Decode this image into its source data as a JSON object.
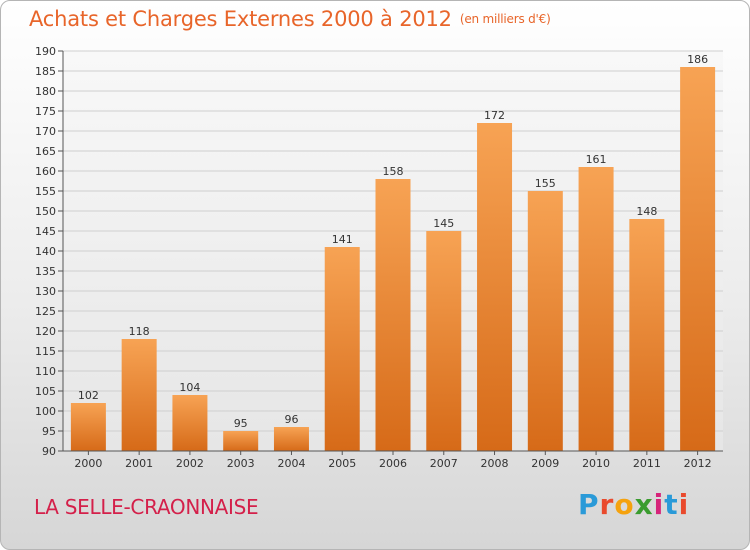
{
  "header": {
    "title": "Achats et Charges Externes 2000 à 2012",
    "unit": "(en milliers d'€)"
  },
  "footer": {
    "commune": "LA SELLE-CRAONNAISE",
    "logo_letters": [
      "P",
      "r",
      "o",
      "x",
      "i",
      "t",
      "i"
    ],
    "logo_colors": [
      "#2a9ad8",
      "#e94a2d",
      "#f5a20e",
      "#3a9c2f",
      "#d6247a",
      "#2a9ad8",
      "#e94a2d"
    ]
  },
  "chart_data": {
    "type": "bar",
    "categories": [
      "2000",
      "2001",
      "2002",
      "2003",
      "2004",
      "2005",
      "2006",
      "2007",
      "2008",
      "2009",
      "2010",
      "2011",
      "2012"
    ],
    "values": [
      102,
      118,
      104,
      95,
      96,
      141,
      158,
      145,
      172,
      155,
      161,
      148,
      186
    ],
    "ylim": [
      90,
      190
    ],
    "yticks": [
      90,
      95,
      100,
      105,
      110,
      115,
      120,
      125,
      130,
      135,
      140,
      145,
      150,
      155,
      160,
      165,
      170,
      175,
      180,
      185,
      190
    ],
    "grid": true,
    "colors": {
      "bar_top": "#f7a354",
      "bar_bottom": "#d66a18",
      "title": "#e8652a",
      "commune": "#d4204a"
    }
  }
}
